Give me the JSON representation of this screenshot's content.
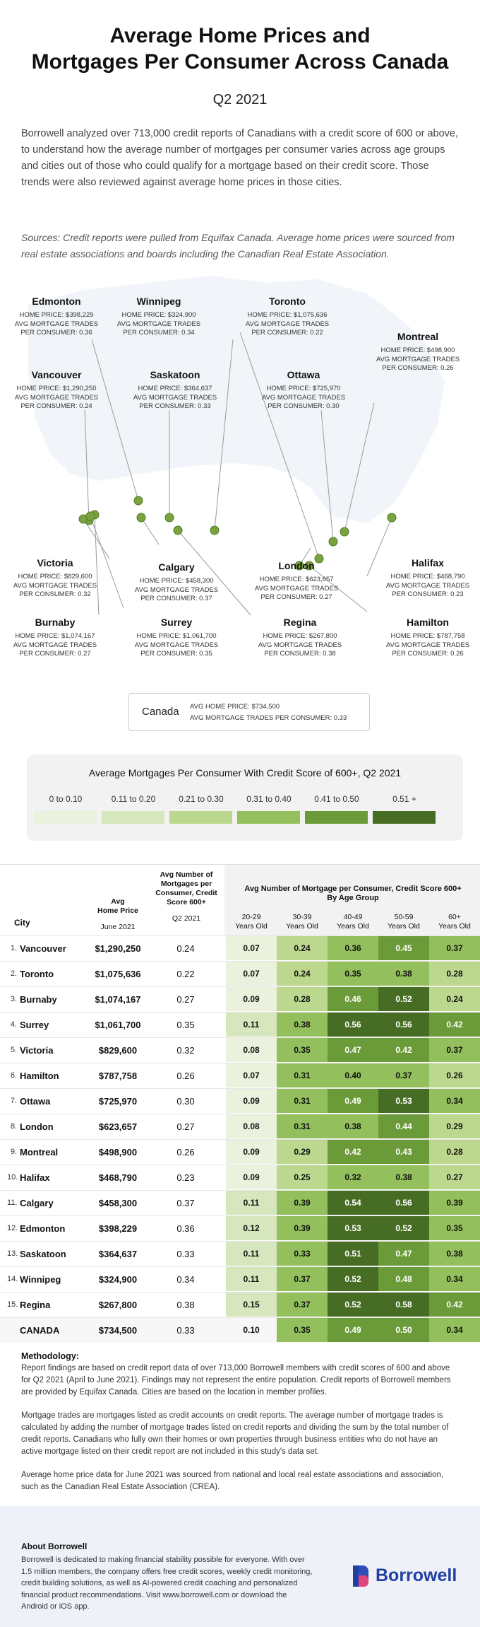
{
  "header": {
    "title_line1": "Average Home Prices and",
    "title_line2": "Mortgages Per Consumer Across Canada",
    "period": "Q2 2021",
    "intro": "Borrowell analyzed over 713,000 credit reports of Canadians with a credit score of 600 or above, to understand how the average number of mortgages per consumer varies across age groups and cities out of those who could qualify for a mortgage based on their credit score. Those trends were also reviewed against average home prices in those cities.",
    "sources": "Sources: Credit reports were pulled from Equifax Canada. Average home prices were sourced from real estate associations and boards including the Canadian Real Estate Association."
  },
  "map": {
    "price_prefix": "HOME PRICE: ",
    "trades_label_line1": "AVG MORTGAGE TRADES",
    "trades_prefix_line2": "PER CONSUMER: ",
    "cities": [
      {
        "key": "edmonton",
        "name": "Edmonton",
        "price": "$398,229",
        "trades": "0.36"
      },
      {
        "key": "winnipeg",
        "name": "Winnipeg",
        "price": "$324,900",
        "trades": "0.34"
      },
      {
        "key": "toronto",
        "name": "Toronto",
        "price": "$1,075,636",
        "trades": "0.22"
      },
      {
        "key": "montreal",
        "name": "Montreal",
        "price": "$498,900",
        "trades": "0.26"
      },
      {
        "key": "vancouver",
        "name": "Vancouver",
        "price": "$1,290,250",
        "trades": "0.24"
      },
      {
        "key": "saskatoon",
        "name": "Saskatoon",
        "price": "$364,637",
        "trades": "0.33"
      },
      {
        "key": "ottawa",
        "name": "Ottawa",
        "price": "$725,970",
        "trades": "0.30"
      },
      {
        "key": "victoria",
        "name": "Victoria",
        "price": "$829,600",
        "trades": "0.32"
      },
      {
        "key": "calgary",
        "name": "Calgary",
        "price": "$458,300",
        "trades": "0.37"
      },
      {
        "key": "london",
        "name": "London",
        "price": "$623,657",
        "trades": "0.27"
      },
      {
        "key": "halifax",
        "name": "Halifax",
        "price": "$468,790",
        "trades": "0.23"
      },
      {
        "key": "burnaby",
        "name": "Burnaby",
        "price": "$1,074,167",
        "trades": "0.27"
      },
      {
        "key": "surrey",
        "name": "Surrey",
        "price": "$1,061,700",
        "trades": "0.35"
      },
      {
        "key": "regina",
        "name": "Regina",
        "price": "$267,800",
        "trades": "0.38"
      },
      {
        "key": "hamilton",
        "name": "Hamilton",
        "price": "$787,758",
        "trades": "0.26"
      }
    ],
    "canada": {
      "name": "Canada",
      "price_line": "AVG HOME PRICE: $734,500",
      "trades_line": "AVG MORTGAGE TRADES PER CONSUMER: 0.33"
    }
  },
  "legend": {
    "title": "Average Mortgages Per Consumer With Credit Score of 600+, Q2 2021",
    "bins": [
      {
        "label": "0 to 0.10",
        "color": "#eaf1dc"
      },
      {
        "label": "0.11 to 0.20",
        "color": "#d6e6bd"
      },
      {
        "label": "0.21 to 0.30",
        "color": "#bcd88f"
      },
      {
        "label": "0.31 to 0.40",
        "color": "#93c05c"
      },
      {
        "label": "0.41 to 0.50",
        "color": "#6b9a38"
      },
      {
        "label": "0.51 +",
        "color": "#476d24"
      }
    ]
  },
  "table": {
    "col_city": "City",
    "col_price_line1": "Avg",
    "col_price_line2": "Home Price",
    "col_price_sub": "June 2021",
    "col_avg_line1": "Avg Number of",
    "col_avg_line2": "Mortgages per",
    "col_avg_line3": "Consumer, Credit",
    "col_avg_line4": "Score 600+",
    "col_avg_sub": "Q2 2021",
    "age_header_line1": "Avg Number of Mortgage per Consumer, Credit Score 600+",
    "age_header_line2": "By Age Group",
    "age_groups": [
      {
        "l1": "20-29",
        "l2": "Years Old"
      },
      {
        "l1": "30-39",
        "l2": "Years Old"
      },
      {
        "l1": "40-49",
        "l2": "Years Old"
      },
      {
        "l1": "50-59",
        "l2": "Years Old"
      },
      {
        "l1": "60+",
        "l2": "Years Old"
      }
    ],
    "rows": [
      {
        "rank": "1.",
        "city": "Vancouver",
        "price": "$1,290,250",
        "avg": "0.24",
        "ages": [
          "0.07",
          "0.24",
          "0.36",
          "0.45",
          "0.37"
        ]
      },
      {
        "rank": "2.",
        "city": "Toronto",
        "price": "$1,075,636",
        "avg": "0.22",
        "ages": [
          "0.07",
          "0.24",
          "0.35",
          "0.38",
          "0.28"
        ]
      },
      {
        "rank": "3.",
        "city": "Burnaby",
        "price": "$1,074,167",
        "avg": "0.27",
        "ages": [
          "0.09",
          "0.28",
          "0.46",
          "0.52",
          "0.24"
        ]
      },
      {
        "rank": "4.",
        "city": "Surrey",
        "price": "$1,061,700",
        "avg": "0.35",
        "ages": [
          "0.11",
          "0.38",
          "0.56",
          "0.56",
          "0.42"
        ]
      },
      {
        "rank": "5.",
        "city": "Victoria",
        "price": "$829,600",
        "avg": "0.32",
        "ages": [
          "0.08",
          "0.35",
          "0.47",
          "0.42",
          "0.37"
        ]
      },
      {
        "rank": "6.",
        "city": "Hamilton",
        "price": "$787,758",
        "avg": "0.26",
        "ages": [
          "0.07",
          "0.31",
          "0.40",
          "0.37",
          "0.26"
        ]
      },
      {
        "rank": "7.",
        "city": "Ottawa",
        "price": "$725,970",
        "avg": "0.30",
        "ages": [
          "0.09",
          "0.31",
          "0.49",
          "0.53",
          "0.34"
        ]
      },
      {
        "rank": "8.",
        "city": "London",
        "price": "$623,657",
        "avg": "0.27",
        "ages": [
          "0.08",
          "0.31",
          "0.38",
          "0.44",
          "0.29"
        ]
      },
      {
        "rank": "9.",
        "city": "Montreal",
        "price": "$498,900",
        "avg": "0.26",
        "ages": [
          "0.09",
          "0.29",
          "0.42",
          "0.43",
          "0.28"
        ]
      },
      {
        "rank": "10.",
        "city": "Halifax",
        "price": "$468,790",
        "avg": "0.23",
        "ages": [
          "0.09",
          "0.25",
          "0.32",
          "0.38",
          "0.27"
        ]
      },
      {
        "rank": "11.",
        "city": "Calgary",
        "price": "$458,300",
        "avg": "0.37",
        "ages": [
          "0.11",
          "0.39",
          "0.54",
          "0.56",
          "0.39"
        ]
      },
      {
        "rank": "12.",
        "city": "Edmonton",
        "price": "$398,229",
        "avg": "0.36",
        "ages": [
          "0.12",
          "0.39",
          "0.53",
          "0.52",
          "0.35"
        ]
      },
      {
        "rank": "13.",
        "city": "Saskatoon",
        "price": "$364,637",
        "avg": "0.33",
        "ages": [
          "0.11",
          "0.33",
          "0.51",
          "0.47",
          "0.38"
        ]
      },
      {
        "rank": "14.",
        "city": "Winnipeg",
        "price": "$324,900",
        "avg": "0.34",
        "ages": [
          "0.11",
          "0.37",
          "0.52",
          "0.48",
          "0.34"
        ]
      },
      {
        "rank": "15.",
        "city": "Regina",
        "price": "$267,800",
        "avg": "0.38",
        "ages": [
          "0.15",
          "0.37",
          "0.52",
          "0.58",
          "0.42"
        ]
      }
    ],
    "total": {
      "city": "CANADA",
      "price": "$734,500",
      "avg": "0.33",
      "ages": [
        "0.10",
        "0.35",
        "0.49",
        "0.50",
        "0.34"
      ]
    }
  },
  "chart_data": {
    "type": "table",
    "title": "Avg Number of Mortgage per Consumer, Credit Score 600+ By Age Group",
    "columns": [
      "City",
      "Avg Home Price June 2021",
      "Avg Number of Mortgages per Consumer, Credit Score 600+ Q2 2021",
      "20-29 Years Old",
      "30-39 Years Old",
      "40-49 Years Old",
      "50-59 Years Old",
      "60+ Years Old"
    ]
  },
  "methodology": {
    "heading": "Methodology:",
    "p1": "Report findings are based on  credit report data of over 713,000 Borrowell members with credit scores of 600 and above for Q2 2021 (April to June 2021). Findings may not represent the entire population. Credit reports of Borrowell members are provided by Equifax Canada. Cities are based on the location in member profiles.",
    "p2": "Mortgage trades are mortgages listed as credit accounts on credit reports. The average number of mortgage trades is calculated by adding the number of mortgage trades listed on credit reports and dividing the sum by the total number of credit reports. Canadians who fully own their homes or  own properties through business entities who do not have an active mortgage listed on their credit report are not included in this study's data set.",
    "p3": "Average home price data for June 2021 was sourced from national and local real estate associations and association, such as the Canadian Real Estate Association (CREA)."
  },
  "footer": {
    "heading": "About Borrowell",
    "text": "Borrowell is dedicated to making financial stability possible for everyone. With over 1.5 million members, the company offers free credit scores, weekly credit monitoring, credit building solutions, as well as AI-powered credit coaching and personalized financial product recommendations. Visit www.borrowell.com or download the Android or iOS app.",
    "logo_text": "Borrowell"
  },
  "colors": {
    "accent": "#1f3fa3",
    "dot": "#7aa33f"
  }
}
